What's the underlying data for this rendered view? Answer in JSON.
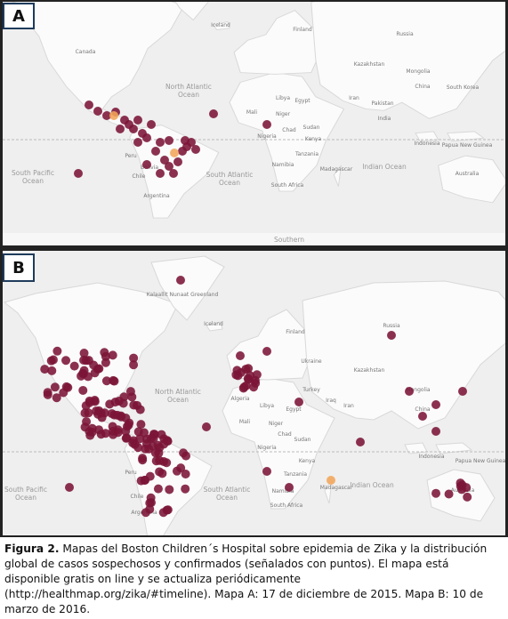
{
  "panels": [
    {
      "letter": "A",
      "labels": [
        "Canada",
        "Iceland",
        "Finland",
        "Russia",
        "Kazakhstan",
        "Mongolia",
        "China",
        "South Korea",
        "Iran",
        "Pakistan",
        "India",
        "North Atlantic Ocean",
        "Mali",
        "Niger",
        "Libya",
        "Egypt",
        "Sudan",
        "Chad",
        "Nigeria",
        "Kenya",
        "Tanzania",
        "Namibia",
        "South Africa",
        "Madagascar",
        "Peru",
        "Bolivia",
        "Chile",
        "Argentina",
        "South Pacific Ocean",
        "South Atlantic Ocean",
        "Indian Ocean",
        "Indonesia",
        "Papua New Guinea",
        "Australia",
        "Southern"
      ]
    },
    {
      "letter": "B",
      "labels": [
        "Kalaallit Nunaat Greenland",
        "Iceland",
        "Finland",
        "Russia",
        "Ukraine",
        "Kazakhstan",
        "Turkey",
        "Iraq",
        "Iran",
        "Mongolia",
        "China",
        "North Atlantic Ocean",
        "Mali",
        "Niger",
        "Libya",
        "Egypt",
        "Sudan",
        "Chad",
        "Algeria",
        "Nigeria",
        "Kenya",
        "Tanzania",
        "Namibia",
        "South Africa",
        "Madagascar",
        "Peru",
        "Chile",
        "Argentina",
        "South Pacific Ocean",
        "South Atlantic Ocean",
        "Indian Ocean",
        "Indonesia",
        "Papua New Guinea",
        "Australia"
      ]
    }
  ],
  "caption": {
    "lead": "Figura 2.",
    "text": "Mapas del Boston Children´s Hospital sobre epidemia de Zika y la distribución global de casos sospechosos y confirmados (señalados con puntos). El mapa está disponible gratis on line y se actualiza periódicamente (http://healthmap.org/zika/#timeline). Mapa A: 17 de diciembre de 2015. Mapa B: 10 de marzo de 2016."
  }
}
